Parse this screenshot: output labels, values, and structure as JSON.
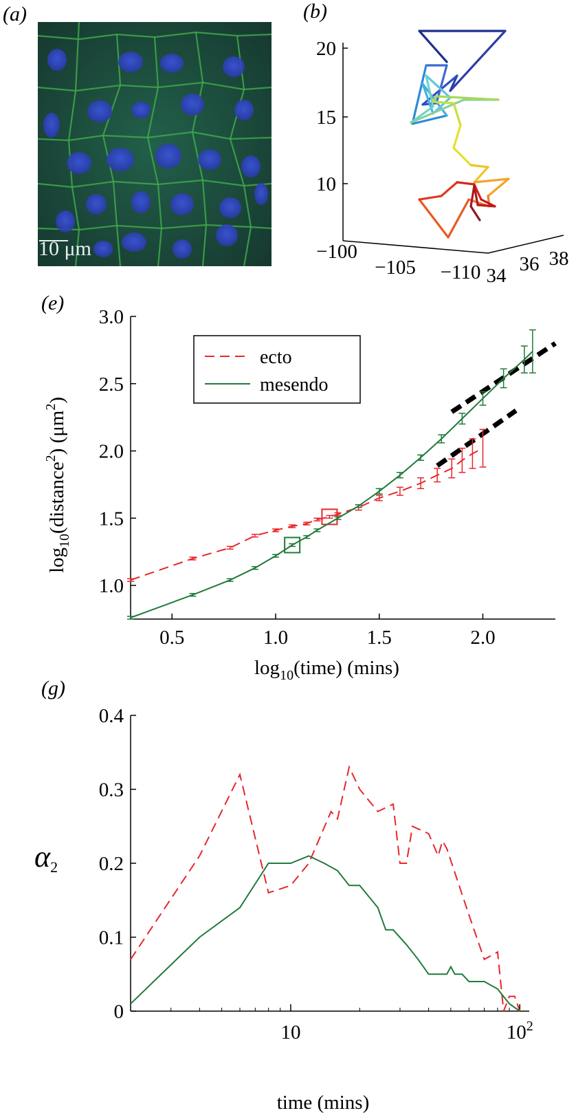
{
  "panels": {
    "a": {
      "label": "(a)",
      "scale_bar": "10 μm",
      "colors": {
        "membrane": "#3fa84a",
        "nucleus": "#3a4fd0",
        "background": "#1a4a3a"
      }
    },
    "b": {
      "label": "(b)",
      "z_ticks": [
        "20",
        "15",
        "10"
      ],
      "x_ticks": [
        "−100",
        "−105",
        "−110"
      ],
      "y_ticks": [
        "34",
        "36",
        "38"
      ]
    },
    "e": {
      "label": "(e)",
      "xlabel_main": "log",
      "xlabel_sub": "10",
      "xlabel_rest": "(time) (mins)",
      "ylabel_main": "log",
      "ylabel_sub": "10",
      "ylabel_mid": "(distance",
      "ylabel_sup": "2",
      "ylabel_rest": ")  (μm",
      "ylabel_sup2": "2",
      "ylabel_end": ")",
      "legend": {
        "ecto": "ecto",
        "mesendo": "mesendo"
      }
    },
    "g": {
      "label": "(g)",
      "ylabel": "α",
      "ylabel_sub": "2",
      "xlabel": "time (mins)"
    }
  },
  "chart_data": [
    {
      "type": "line",
      "panel": "e",
      "xlim": [
        0.3,
        2.35
      ],
      "ylim": [
        0.75,
        3.0
      ],
      "x_ticks": [
        0.5,
        1.0,
        1.5,
        2.0
      ],
      "x_tick_labels": [
        "0.5",
        "1.0",
        "1.5",
        "2.0"
      ],
      "y_ticks": [
        1.0,
        1.5,
        2.0,
        2.5,
        3.0
      ],
      "y_tick_labels": [
        "1.0",
        "1.5",
        "2.0",
        "2.5",
        "3.0"
      ],
      "legend_position": "top-left",
      "series": [
        {
          "name": "ecto",
          "style": "dashed",
          "color": "#e8262b",
          "x": [
            0.3,
            0.6,
            0.78,
            0.9,
            1.0,
            1.08,
            1.15,
            1.2,
            1.26,
            1.3,
            1.4,
            1.5,
            1.6,
            1.7,
            1.78,
            1.85,
            1.9,
            1.95,
            2.0
          ],
          "y": [
            1.04,
            1.2,
            1.28,
            1.37,
            1.41,
            1.44,
            1.46,
            1.49,
            1.51,
            1.53,
            1.58,
            1.65,
            1.7,
            1.76,
            1.82,
            1.87,
            1.93,
            1.98,
            2.02
          ],
          "err": [
            0.01,
            0.01,
            0.01,
            0.01,
            0.01,
            0.01,
            0.01,
            0.01,
            0.01,
            0.01,
            0.02,
            0.02,
            0.03,
            0.04,
            0.05,
            0.07,
            0.09,
            0.11,
            0.14
          ],
          "marker_x": 1.26,
          "marker_y": 1.51
        },
        {
          "name": "mesendo",
          "style": "solid",
          "color": "#1f7a3a",
          "x": [
            0.3,
            0.6,
            0.78,
            0.9,
            1.0,
            1.08,
            1.15,
            1.2,
            1.3,
            1.4,
            1.5,
            1.6,
            1.7,
            1.8,
            1.9,
            2.0,
            2.1,
            2.2,
            2.24
          ],
          "y": [
            0.76,
            0.93,
            1.04,
            1.13,
            1.22,
            1.3,
            1.36,
            1.41,
            1.5,
            1.59,
            1.7,
            1.82,
            1.95,
            2.09,
            2.24,
            2.39,
            2.54,
            2.68,
            2.74
          ],
          "err": [
            0.01,
            0.01,
            0.01,
            0.01,
            0.01,
            0.01,
            0.01,
            0.01,
            0.01,
            0.01,
            0.02,
            0.02,
            0.02,
            0.03,
            0.04,
            0.05,
            0.07,
            0.1,
            0.16
          ],
          "marker_x": 1.08,
          "marker_y": 1.3
        }
      ],
      "fit_lines": [
        {
          "x": [
            1.85,
            2.35
          ],
          "y": [
            2.29,
            2.8
          ]
        },
        {
          "x": [
            1.78,
            2.16
          ],
          "y": [
            1.89,
            2.3
          ]
        }
      ]
    },
    {
      "type": "line",
      "panel": "g",
      "x_scale": "log",
      "xlim": [
        2,
        110
      ],
      "ylim": [
        0,
        0.4
      ],
      "x_ticks": [
        10,
        100
      ],
      "y_ticks": [
        0,
        0.1,
        0.2,
        0.3,
        0.4
      ],
      "y_tick_labels": [
        "0",
        "0.1",
        "0.2",
        "0.3",
        "0.4"
      ],
      "series": [
        {
          "name": "ecto",
          "style": "dashed",
          "color": "#e8262b",
          "x": [
            2,
            4,
            6,
            8,
            10,
            12,
            15,
            16,
            18,
            20,
            24,
            28,
            30,
            32,
            34,
            40,
            44,
            46,
            48,
            60,
            70,
            80,
            85,
            90,
            95,
            100
          ],
          "y": [
            0.07,
            0.21,
            0.32,
            0.16,
            0.17,
            0.2,
            0.27,
            0.26,
            0.33,
            0.3,
            0.27,
            0.28,
            0.2,
            0.2,
            0.25,
            0.24,
            0.21,
            0.23,
            0.22,
            0.13,
            0.07,
            0.08,
            0.0,
            0.02,
            0.02,
            0.0
          ]
        },
        {
          "name": "mesendo",
          "style": "solid",
          "color": "#1f7a3a",
          "x": [
            2,
            4,
            6,
            8,
            10,
            12,
            14,
            16,
            18,
            20,
            24,
            26,
            28,
            32,
            36,
            40,
            44,
            48,
            50,
            52,
            56,
            60,
            64,
            70,
            80,
            90,
            100
          ],
          "y": [
            0.01,
            0.1,
            0.14,
            0.2,
            0.2,
            0.21,
            0.2,
            0.19,
            0.17,
            0.17,
            0.14,
            0.11,
            0.11,
            0.09,
            0.07,
            0.05,
            0.05,
            0.05,
            0.06,
            0.05,
            0.05,
            0.04,
            0.04,
            0.04,
            0.03,
            0.01,
            0.0
          ]
        }
      ]
    }
  ]
}
